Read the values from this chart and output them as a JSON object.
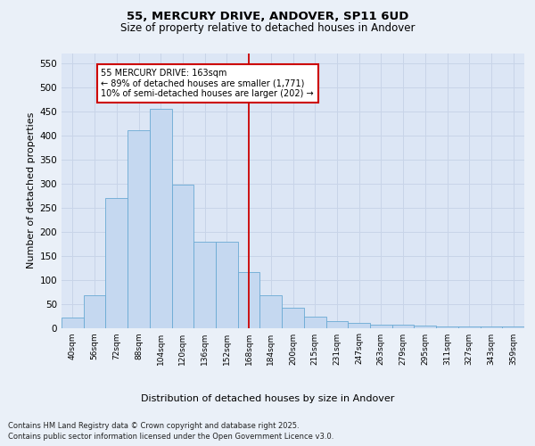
{
  "title1": "55, MERCURY DRIVE, ANDOVER, SP11 6UD",
  "title2": "Size of property relative to detached houses in Andover",
  "xlabel": "Distribution of detached houses by size in Andover",
  "ylabel": "Number of detached properties",
  "bin_labels": [
    "40sqm",
    "56sqm",
    "72sqm",
    "88sqm",
    "104sqm",
    "120sqm",
    "136sqm",
    "152sqm",
    "168sqm",
    "184sqm",
    "200sqm",
    "215sqm",
    "231sqm",
    "247sqm",
    "263sqm",
    "279sqm",
    "295sqm",
    "311sqm",
    "327sqm",
    "343sqm",
    "359sqm"
  ],
  "bar_values": [
    22,
    68,
    270,
    410,
    455,
    298,
    178,
    178,
    115,
    68,
    42,
    24,
    14,
    11,
    6,
    6,
    4,
    3,
    3,
    2,
    2
  ],
  "bar_color": "#c5d8f0",
  "bar_edge_color": "#6aaad4",
  "grid_color": "#c8d4e8",
  "background_color": "#dce6f5",
  "fig_background_color": "#eaf0f8",
  "red_line_x": 8.0,
  "annotation_text": "55 MERCURY DRIVE: 163sqm\n← 89% of detached houses are smaller (1,771)\n10% of semi-detached houses are larger (202) →",
  "annotation_box_color": "#ffffff",
  "annotation_box_edge": "#cc0000",
  "ylim": [
    0,
    570
  ],
  "yticks": [
    0,
    50,
    100,
    150,
    200,
    250,
    300,
    350,
    400,
    450,
    500,
    550
  ],
  "footer_line1": "Contains HM Land Registry data © Crown copyright and database right 2025.",
  "footer_line2": "Contains public sector information licensed under the Open Government Licence v3.0."
}
